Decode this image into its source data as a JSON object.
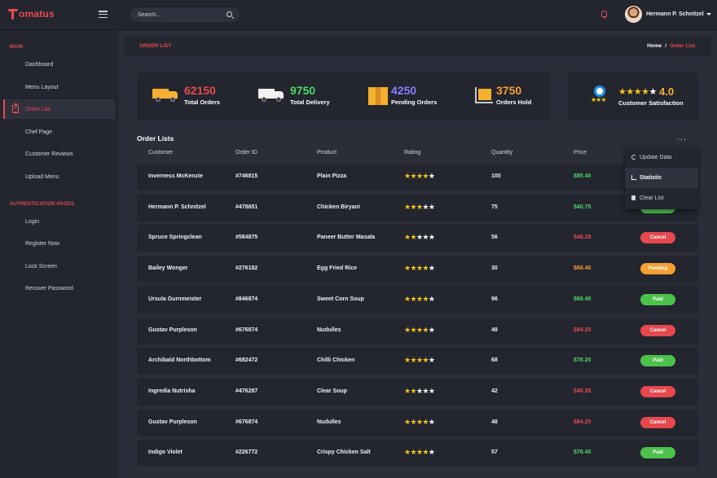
{
  "topbar": {
    "logo": "omatus",
    "search_placeholder": "Search...",
    "user_name": "Hermann P. Schnitzel"
  },
  "sidebar": {
    "section_main": "MAIN",
    "main_items": [
      "Dashboard",
      "Menu Layout",
      "Order List",
      "Chef Page",
      "Customer Reviews",
      "Upload Menu"
    ],
    "active_item": "Order List",
    "section_auth": "AUTHENTICATION PAGES",
    "auth_items": [
      "Login",
      "Register Now",
      "Lock Screen",
      "Recover Password"
    ]
  },
  "breadcrumb": {
    "title": "ORDER LIST",
    "home": "Home",
    "separator": "/",
    "current": "Order List"
  },
  "stats": [
    {
      "value": "62150",
      "label": "Total Orders",
      "color": "#e74c4c",
      "icon": "truck-icon"
    },
    {
      "value": "9750",
      "label": "Total Delivery",
      "color": "#4cd964",
      "icon": "delivery-van-icon"
    },
    {
      "value": "4250",
      "label": "Pending Orders",
      "color": "#8a7dff",
      "icon": "parcel-icon"
    },
    {
      "value": "3750",
      "label": "Orders Hold",
      "color": "#f5a030",
      "icon": "trolley-icon"
    }
  ],
  "satisfaction": {
    "rating": "4.0",
    "stars_filled": 4,
    "label": "Customer Satisfaction"
  },
  "orders": {
    "title": "Order Lists",
    "columns": [
      "Customer",
      "Order ID",
      "Product",
      "Rating",
      "Quantity",
      "Price"
    ],
    "rows": [
      {
        "customer": "Inverness McKenzie",
        "id": "#746815",
        "product": "Plain Pizza",
        "rating": 4,
        "qty": "100",
        "price": "$85.40",
        "price_color": "#4cd964",
        "status": "",
        "status_color": ""
      },
      {
        "customer": "Hermann P. Schnitzel",
        "id": "#478651",
        "product": "Chicken Biryani",
        "rating": 3,
        "qty": "75",
        "price": "$40.75",
        "price_color": "#4cd964",
        "status": "Paid",
        "status_color": "#4cc14c"
      },
      {
        "customer": "Spruce Springclean",
        "id": "#584875",
        "product": "Paneer Butter Masala",
        "rating": 2,
        "qty": "56",
        "price": "$48.28",
        "price_color": "#e74c4c",
        "status": "Cancel",
        "status_color": "#e5484d"
      },
      {
        "customer": "Bailey Wonger",
        "id": "#276182",
        "product": "Egg Fried Rice",
        "rating": 4,
        "qty": "30",
        "price": "$68.40",
        "price_color": "#f5a030",
        "status": "Pending",
        "status_color": "#f5a030"
      },
      {
        "customer": "Ursula Gurnmeister",
        "id": "#846874",
        "product": "Sweet Corn Soup",
        "rating": 4,
        "qty": "96",
        "price": "$68.40",
        "price_color": "#4cd964",
        "status": "Paid",
        "status_color": "#4cc14c"
      },
      {
        "customer": "Gustav Purpleson",
        "id": "#676874",
        "product": "Nudulles",
        "rating": 4,
        "qty": "48",
        "price": "$84.25",
        "price_color": "#e74c4c",
        "status": "Cancel",
        "status_color": "#e5484d"
      },
      {
        "customer": "Archibald Northbottom",
        "id": "#682472",
        "product": "Chilli Chicken",
        "rating": 4,
        "qty": "68",
        "price": "$78.20",
        "price_color": "#4cd964",
        "status": "Paid",
        "status_color": "#4cc14c"
      },
      {
        "customer": "Ingredia Nutrisha",
        "id": "#476287",
        "product": "Clear Soup",
        "rating": 2,
        "qty": "42",
        "price": "$48.28",
        "price_color": "#e74c4c",
        "status": "Cancel",
        "status_color": "#e5484d"
      },
      {
        "customer": "Gustav Purpleson",
        "id": "#676874",
        "product": "Nudulles",
        "rating": 4,
        "qty": "48",
        "price": "$84.25",
        "price_color": "#e74c4c",
        "status": "Cancel",
        "status_color": "#e5484d"
      },
      {
        "customer": "Indigo Violet",
        "id": "#226772",
        "product": "Crispy Chicken Salt",
        "rating": 4,
        "qty": "57",
        "price": "$78.40",
        "price_color": "#4cd964",
        "status": "Paid",
        "status_color": "#4cc14c"
      }
    ]
  },
  "dropdown": {
    "items": [
      "Update Data",
      "Statistic",
      "Clear List"
    ],
    "icons": [
      "refresh-icon",
      "chart-icon",
      "trash-icon"
    ],
    "hovered": "Statistic"
  }
}
